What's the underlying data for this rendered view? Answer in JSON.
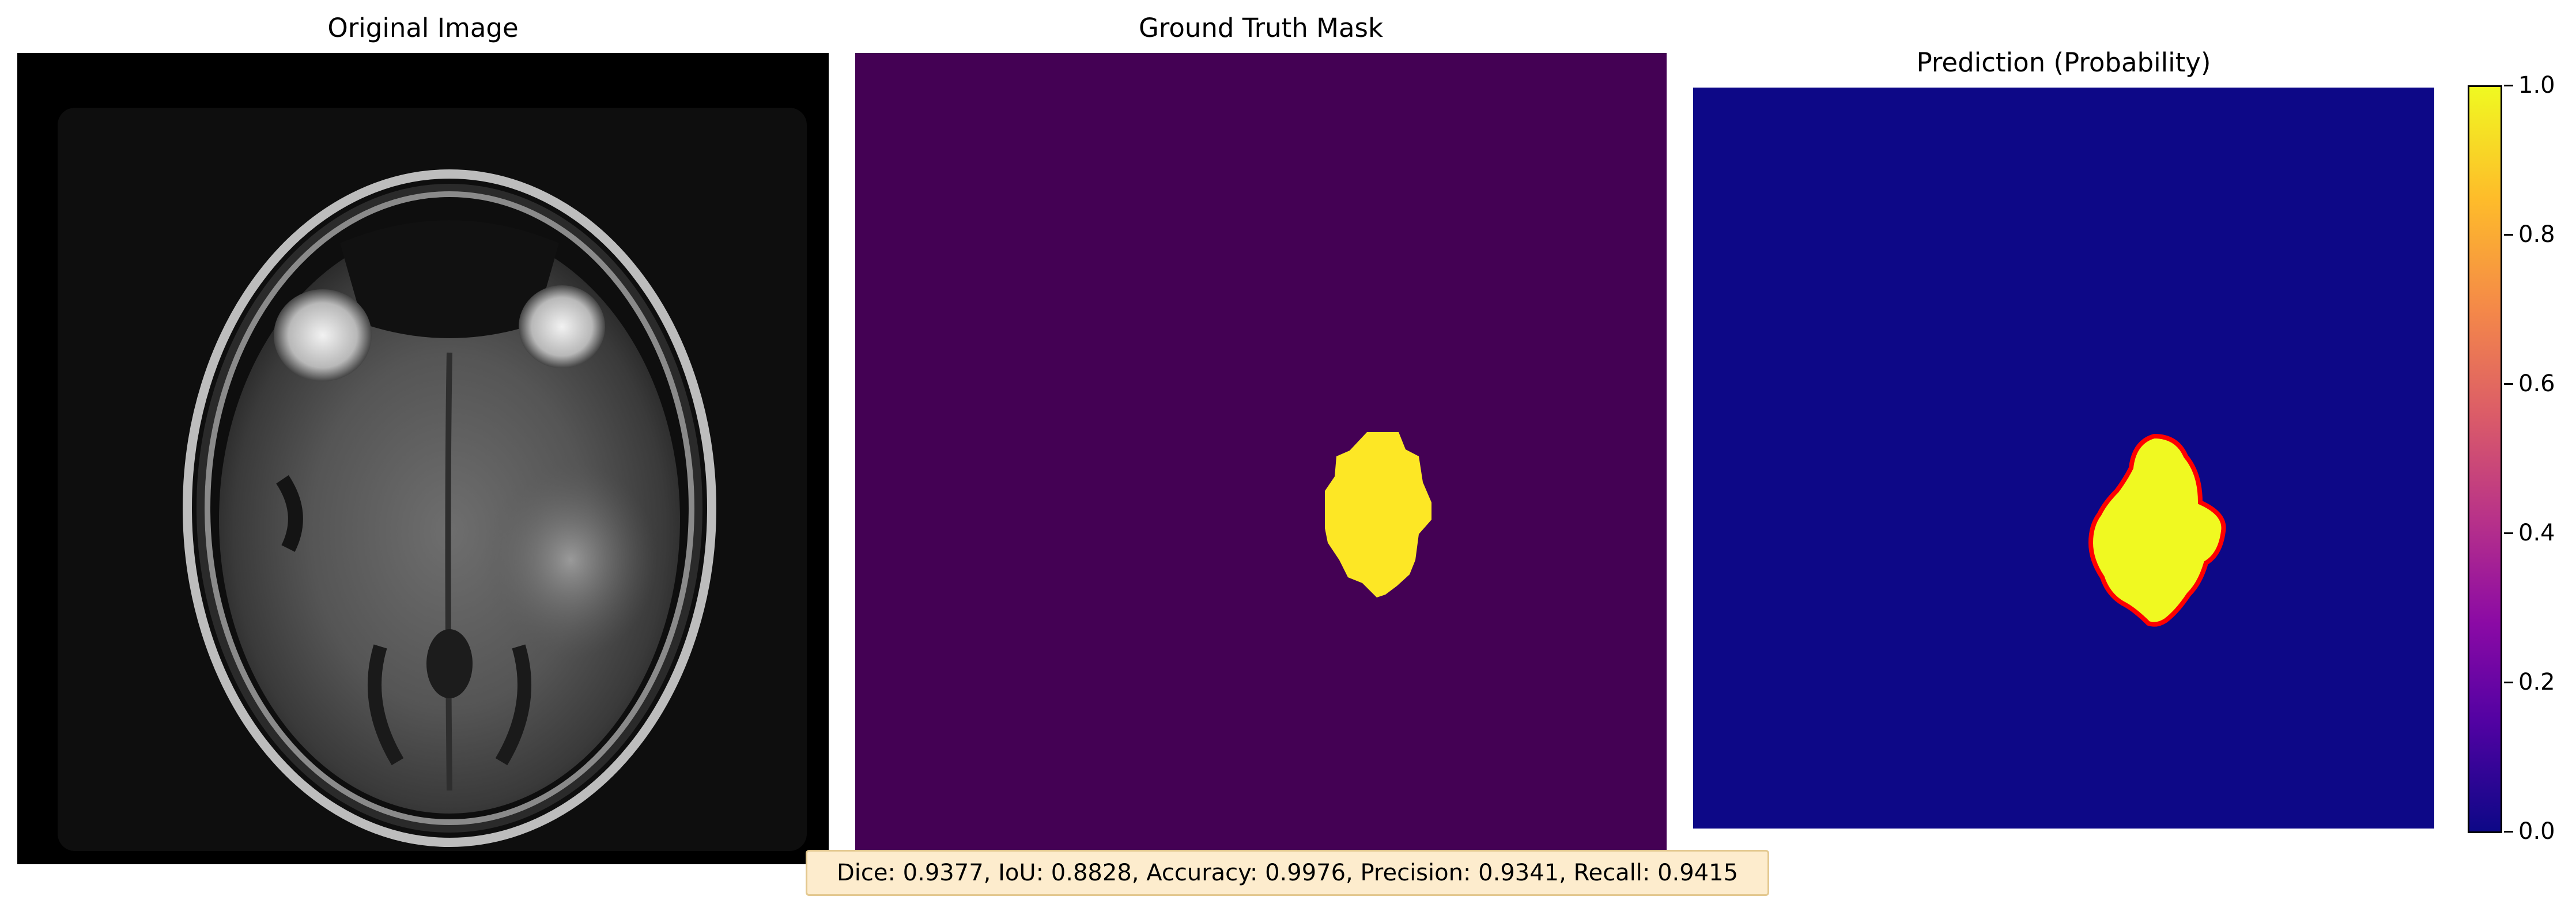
{
  "panels": {
    "original": {
      "title": "Original Image"
    },
    "ground_truth": {
      "title": "Ground Truth Mask"
    },
    "prediction": {
      "title": "Prediction (Probability)"
    }
  },
  "colorbar": {
    "ticks": [
      "1.0",
      "0.8",
      "0.6",
      "0.4",
      "0.2",
      "0.0"
    ],
    "range": [
      0.0,
      1.0
    ]
  },
  "metrics": {
    "text": "Dice: 0.9377, IoU: 0.8828, Accuracy: 0.9976, Precision: 0.9341, Recall: 0.9415"
  },
  "colors": {
    "gt_background": "#440154",
    "gt_mask": "#fde725",
    "pred_background": "#0d0887",
    "pred_mask": "#f0f921",
    "pred_contour": "#ff0000",
    "metrics_box": "#fdeccd"
  }
}
